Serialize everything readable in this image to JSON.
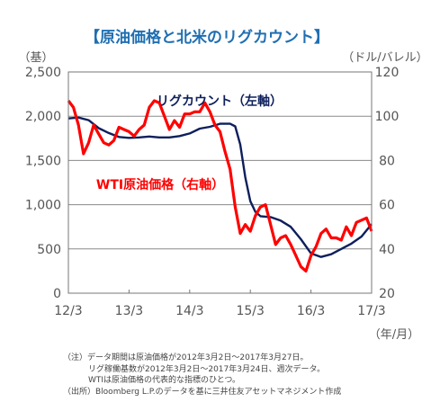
{
  "chart_data": {
    "type": "line",
    "title": "【原油価格と北米のリグカウント】",
    "left_axis_unit": "（基）",
    "right_axis_unit": "（ドル/バレル）",
    "x_axis_unit": "（年/月）",
    "left_ylim": [
      0,
      2500
    ],
    "left_yticks": [
      "0",
      "500",
      "1,000",
      "1,500",
      "2,000",
      "2,500"
    ],
    "right_ylim": [
      20,
      120
    ],
    "right_yticks": [
      "20",
      "40",
      "60",
      "80",
      "100",
      "120"
    ],
    "x_range": [
      "2012-03",
      "2017-03"
    ],
    "x_ticks": [
      "12/3",
      "13/3",
      "14/3",
      "15/3",
      "16/3",
      "17/3"
    ],
    "grid": true,
    "series": [
      {
        "name": "リグカウント（左軸）",
        "axis": "left",
        "color": "#0d1f5c",
        "points": [
          [
            "2012-03",
            1975
          ],
          [
            "2012-05",
            1985
          ],
          [
            "2012-07",
            1955
          ],
          [
            "2012-09",
            1865
          ],
          [
            "2012-11",
            1810
          ],
          [
            "2013-01",
            1765
          ],
          [
            "2013-03",
            1755
          ],
          [
            "2013-05",
            1760
          ],
          [
            "2013-07",
            1770
          ],
          [
            "2013-09",
            1760
          ],
          [
            "2013-11",
            1760
          ],
          [
            "2014-01",
            1775
          ],
          [
            "2014-03",
            1805
          ],
          [
            "2014-05",
            1860
          ],
          [
            "2014-07",
            1880
          ],
          [
            "2014-09",
            1915
          ],
          [
            "2014-11",
            1915
          ],
          [
            "2014-12",
            1885
          ],
          [
            "2015-01",
            1680
          ],
          [
            "2015-02",
            1310
          ],
          [
            "2015-03",
            1040
          ],
          [
            "2015-04",
            920
          ],
          [
            "2015-05",
            870
          ],
          [
            "2015-07",
            860
          ],
          [
            "2015-09",
            820
          ],
          [
            "2015-11",
            750
          ],
          [
            "2016-01",
            610
          ],
          [
            "2016-03",
            450
          ],
          [
            "2016-05",
            410
          ],
          [
            "2016-07",
            440
          ],
          [
            "2016-09",
            500
          ],
          [
            "2016-11",
            560
          ],
          [
            "2017-01",
            640
          ],
          [
            "2017-03",
            780
          ]
        ]
      },
      {
        "name": "WTI原油価格（右軸）",
        "axis": "right",
        "color": "#ff0000",
        "points": [
          [
            "2012-03",
            107
          ],
          [
            "2012-04",
            104
          ],
          [
            "2012-05",
            96
          ],
          [
            "2012-06",
            83
          ],
          [
            "2012-07",
            88
          ],
          [
            "2012-08",
            96
          ],
          [
            "2012-09",
            92
          ],
          [
            "2012-10",
            88
          ],
          [
            "2012-11",
            87
          ],
          [
            "2012-12",
            89
          ],
          [
            "2013-01",
            95
          ],
          [
            "2013-02",
            94
          ],
          [
            "2013-03",
            93
          ],
          [
            "2013-04",
            91
          ],
          [
            "2013-05",
            94
          ],
          [
            "2013-06",
            96
          ],
          [
            "2013-07",
            104
          ],
          [
            "2013-08",
            107
          ],
          [
            "2013-09",
            106
          ],
          [
            "2013-10",
            100
          ],
          [
            "2013-11",
            94
          ],
          [
            "2013-12",
            98
          ],
          [
            "2014-01",
            95
          ],
          [
            "2014-02",
            101
          ],
          [
            "2014-03",
            101
          ],
          [
            "2014-04",
            102
          ],
          [
            "2014-05",
            102
          ],
          [
            "2014-06",
            106
          ],
          [
            "2014-07",
            102
          ],
          [
            "2014-08",
            96
          ],
          [
            "2014-09",
            93
          ],
          [
            "2014-10",
            84
          ],
          [
            "2014-11",
            76
          ],
          [
            "2014-12",
            59
          ],
          [
            "2015-01",
            47
          ],
          [
            "2015-02",
            51
          ],
          [
            "2015-03",
            48
          ],
          [
            "2015-04",
            55
          ],
          [
            "2015-05",
            59
          ],
          [
            "2015-06",
            60
          ],
          [
            "2015-07",
            51
          ],
          [
            "2015-08",
            42
          ],
          [
            "2015-09",
            45
          ],
          [
            "2015-10",
            46
          ],
          [
            "2015-11",
            42
          ],
          [
            "2015-12",
            37
          ],
          [
            "2016-01",
            32
          ],
          [
            "2016-02",
            30
          ],
          [
            "2016-03",
            37
          ],
          [
            "2016-04",
            41
          ],
          [
            "2016-05",
            47
          ],
          [
            "2016-06",
            49
          ],
          [
            "2016-07",
            45
          ],
          [
            "2016-08",
            45
          ],
          [
            "2016-09",
            44
          ],
          [
            "2016-10",
            50
          ],
          [
            "2016-11",
            46
          ],
          [
            "2016-12",
            52
          ],
          [
            "2017-01",
            53
          ],
          [
            "2017-02",
            54
          ],
          [
            "2017-03",
            48
          ]
        ]
      }
    ]
  },
  "notes": [
    "（注）データ期間は原油価格が2012年3月2日～2017年3月27日。",
    "リグ稼働基数が2012年3月2日～2017年3月24日、週次データ。",
    "WTIは原油価格の代表的な指標のひとつ。",
    "（出所）Bloomberg L.P.のデータを基に三井住友アセットマネジメント作成"
  ]
}
